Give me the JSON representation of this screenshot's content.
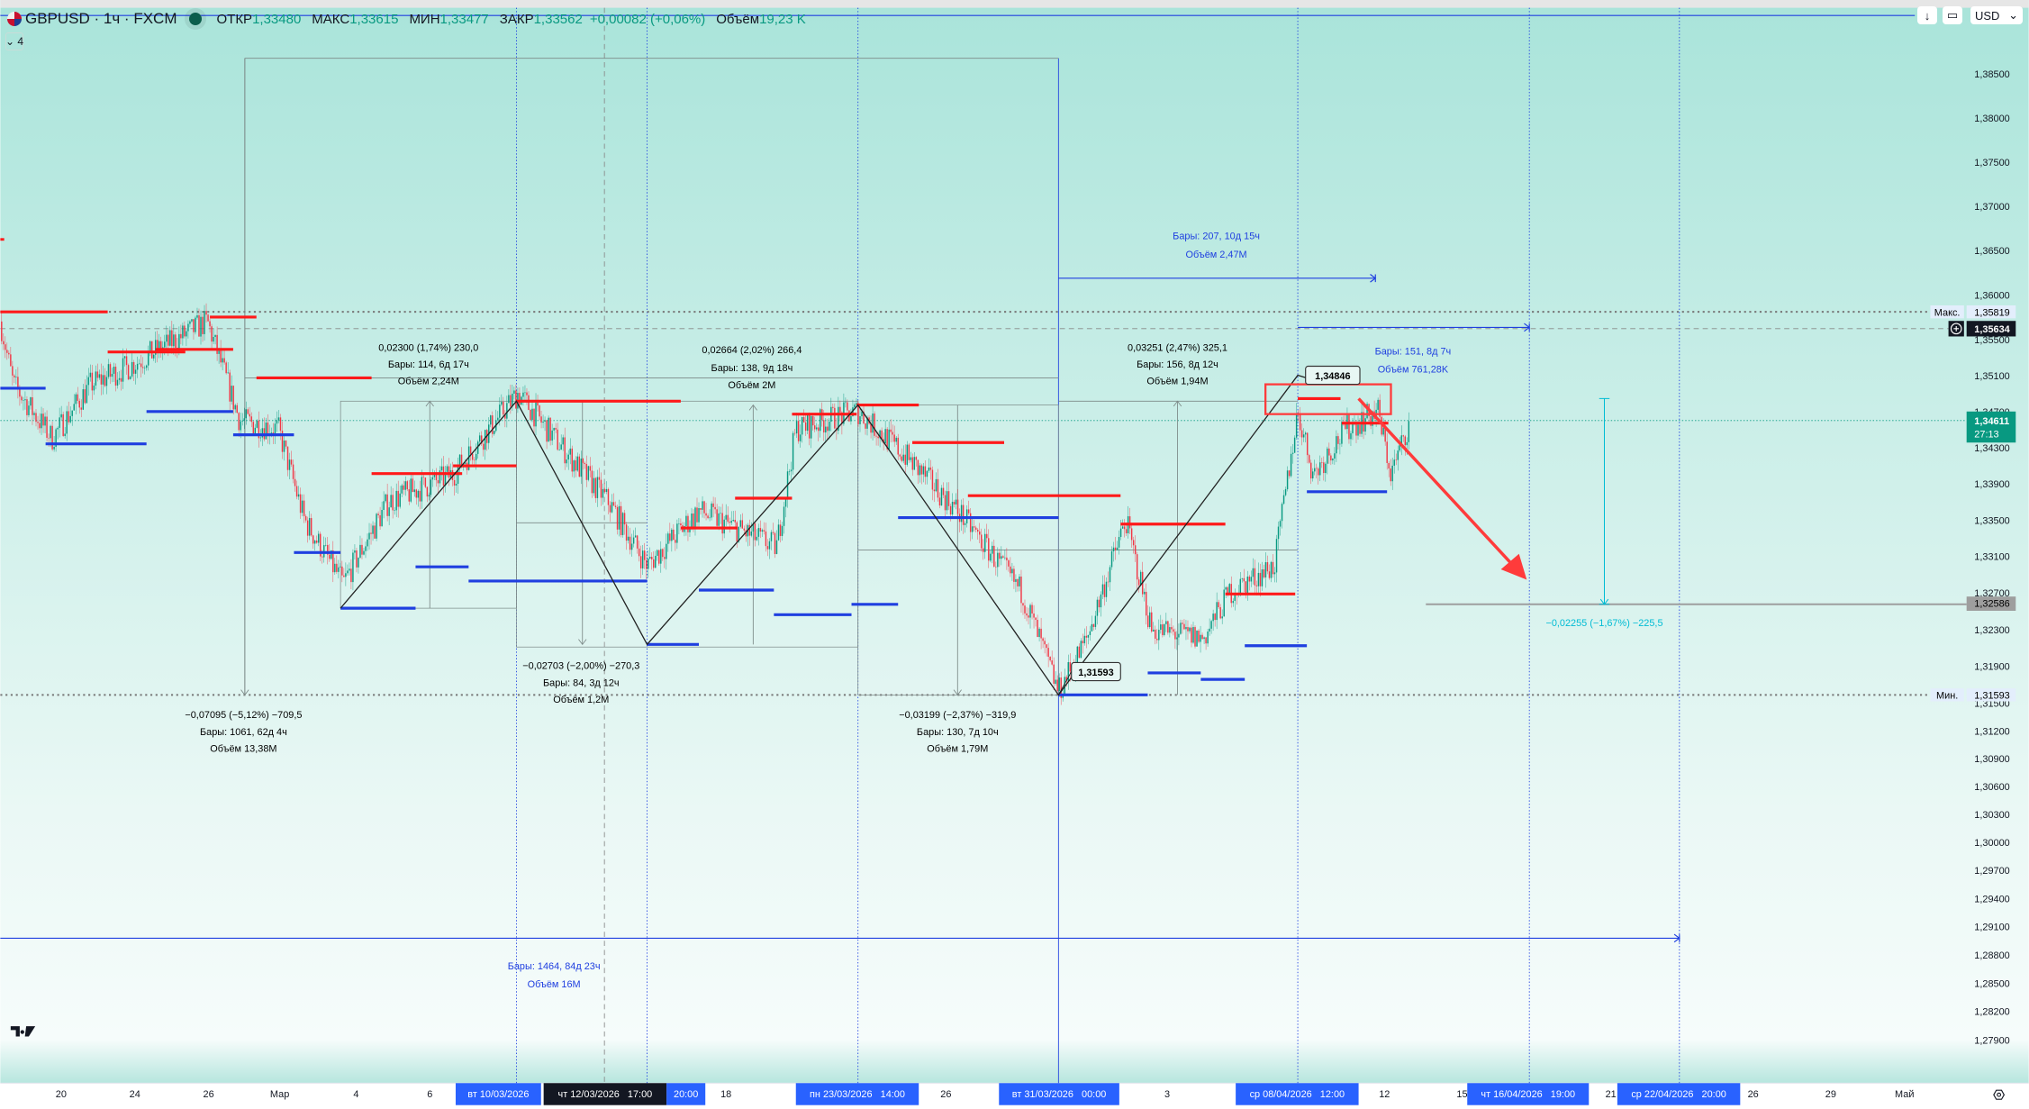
{
  "header": {
    "symbol": "GBPUSD · 1ч · FXCM",
    "open_label": "ОТКР",
    "open": "1,33480",
    "high_label": "МАКС",
    "high": "1,33615",
    "low_label": "МИН",
    "low": "1,33477",
    "close_label": "ЗАКР",
    "close": "1,33562",
    "change": "+0,00082 (+0,06%)",
    "volume_label": "Объём",
    "volume": "19,23 K",
    "indicators_count": "4",
    "currency": "USD"
  },
  "price_axis": {
    "ticks": [
      "1,38500",
      "1,38000",
      "1,37500",
      "1,37000",
      "1,36500",
      "1,36000",
      "1,35500",
      "1,35100",
      "1,34700",
      "1,34300",
      "1,33900",
      "1,33500",
      "1,33100",
      "1,32700",
      "1,32300",
      "1,31900",
      "1,31500",
      "1,31200",
      "1,30900",
      "1,30600",
      "1,30300",
      "1,30000",
      "1,29700",
      "1,29400",
      "1,29100",
      "1,28800",
      "1,28500",
      "1,28200",
      "1,27900"
    ],
    "scale": "log",
    "max_label": "Макс.",
    "max_value": "1,35819",
    "crosshair_value": "1,35634",
    "current_price": "1,34611",
    "countdown": "27:13",
    "target_value": "1,32586",
    "min_label": "Мин.",
    "min_value": "1,31593"
  },
  "time_axis": {
    "labels": [
      "20",
      "24",
      "26",
      "Мар",
      "4",
      "6",
      "18",
      "26",
      "3",
      "12",
      "15",
      "21",
      "26",
      "29",
      "Май"
    ],
    "highlighted": [
      "вт 10/03/2026",
      "чт 12/03/2026   17:00",
      "20:00",
      "пн 23/03/2026   14:00",
      "вт 31/03/2026   00:00",
      "ср 08/04/2026   12:00",
      "чт 16/04/2026   19:00",
      "ср 22/04/2026   20:00"
    ]
  },
  "annotations": {
    "m1": [
      "0,02300 (1,74%) 230,0",
      "Бары: 114, 6д 17ч",
      "Объём 2,24M"
    ],
    "m2": [
      "0,02664 (2,02%) 266,4",
      "Бары: 138, 9д 18ч",
      "Объём 2M"
    ],
    "m3": [
      "0,03251 (2,47%) 325,1",
      "Бары: 156, 8д 12ч",
      "Объём 1,94M"
    ],
    "m4": [
      "−0,07095 (−5,12%) −709,5",
      "Бары: 1061, 62д 4ч",
      "Объём 13,38M"
    ],
    "m5": [
      "−0,02703 (−2,00%) −270,3",
      "Бары: 84, 3д 12ч",
      "Объём 1,2M"
    ],
    "m6": [
      "−0,03199 (−2,37%) −319,9",
      "Бары: 130, 7д 10ч",
      "Объём 1,79M"
    ],
    "r1": [
      "Бары: 207, 10д 15ч",
      "Объём 2,47M"
    ],
    "r2": [
      "Бары: 151, 8д 7ч",
      "Объём 761,28K"
    ],
    "r3": [
      "Бары: 1464, 84д 23ч",
      "Объём 16M"
    ],
    "target": "−0,02255 (−1,67%) −225,5",
    "pivot_high": "1,34846",
    "pivot_low": "1,31593"
  },
  "colors": {
    "up": "#089981",
    "down": "#f23645",
    "resistance": "#ff1a1a",
    "support": "#1f3fe0",
    "measure": "#1f3fe0",
    "target": "#00bcd4",
    "axis_highlight": "#2962ff",
    "bg_top": "#a9e4da",
    "bg_bottom": "#f5fcfb"
  }
}
